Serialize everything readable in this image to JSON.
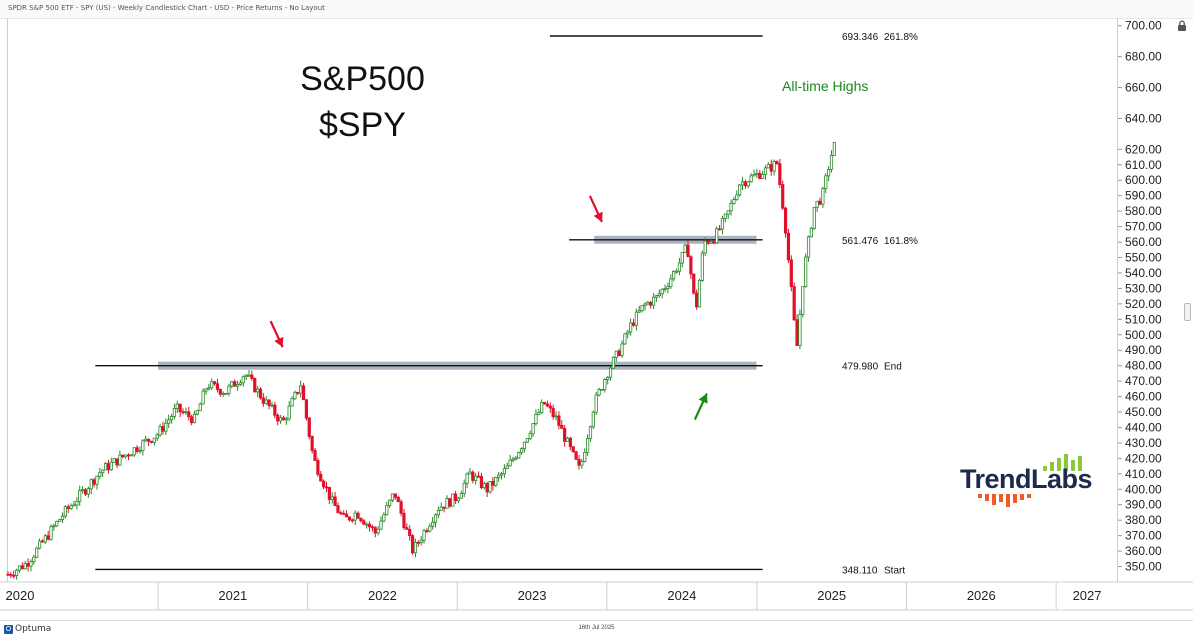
{
  "header": {
    "title": "SPDR S&P 500 ETF - SPY (US) - Weekly Candlestick Chart - USD - Price Returns - No Layout"
  },
  "annotations": {
    "title_line1": "S&P500",
    "title_line2": "$SPY",
    "ath_label": "All-time Highs",
    "ath_color": "#1a8a1a"
  },
  "footer": {
    "brand": "Optuma",
    "date": "16th Jul 2025"
  },
  "logo": {
    "text": "TrendLabs",
    "icon": "trendlabs-bars-logo"
  },
  "chart_data": {
    "type": "candlestick",
    "ylim": [
      340,
      705
    ],
    "yticks": [
      350,
      360,
      370,
      380,
      390,
      400,
      410,
      420,
      430,
      440,
      450,
      460,
      470,
      480,
      490,
      500,
      510,
      520,
      530,
      540,
      550,
      560,
      570,
      580,
      590,
      600,
      610,
      620,
      640,
      660,
      680,
      700
    ],
    "x_years": [
      "2020",
      "2021",
      "2022",
      "2023",
      "2024",
      "2025",
      "2026",
      "2027"
    ],
    "x_year_start_index": 2020,
    "xlim": [
      "2020-01-01",
      "2027-06-01"
    ],
    "up_color": "#2a8a2a",
    "down_color": "#e0102a",
    "levels": [
      {
        "value": 693.346,
        "label": "693.346",
        "tag": "261.8%",
        "from": "2023-08-15",
        "to": "2025-01-15"
      },
      {
        "value": 561.476,
        "label": "561.476",
        "tag": "161.8%",
        "from": "2023-10-01",
        "to": "2025-01-15"
      },
      {
        "value": 479.98,
        "label": "479.980",
        "tag": "End",
        "from": "2020-08-01",
        "to": "2025-01-15"
      },
      {
        "value": 348.11,
        "label": "348.110",
        "tag": "Start",
        "from": "2020-08-01",
        "to": "2025-01-15"
      }
    ],
    "zones": [
      {
        "value": 479.98,
        "from": "2021-01-01",
        "to": "2024-12-31",
        "color": "#8f9aa8"
      },
      {
        "value": 561.48,
        "from": "2023-12-01",
        "to": "2024-12-31",
        "color": "#8f9aa8"
      }
    ],
    "arrows": [
      {
        "date": "2021-11-01",
        "value": 492,
        "dir": "down",
        "color": "#e0102a"
      },
      {
        "date": "2023-12-20",
        "value": 573,
        "dir": "down",
        "color": "#e0102a"
      },
      {
        "date": "2024-09-01",
        "value": 462,
        "dir": "up",
        "color": "#1a8a1a"
      }
    ],
    "path": [
      [
        "2020-01-01",
        345
      ],
      [
        "2020-02-15",
        352
      ],
      [
        "2020-04-01",
        368
      ],
      [
        "2020-05-15",
        384
      ],
      [
        "2020-07-01",
        398
      ],
      [
        "2020-08-15",
        412
      ],
      [
        "2020-10-01",
        420
      ],
      [
        "2020-11-15",
        428
      ],
      [
        "2021-01-01",
        436
      ],
      [
        "2021-02-15",
        452
      ],
      [
        "2021-04-01",
        445
      ],
      [
        "2021-05-01",
        468
      ],
      [
        "2021-06-15",
        463
      ],
      [
        "2021-08-01",
        475
      ],
      [
        "2021-09-15",
        458
      ],
      [
        "2021-11-01",
        443
      ],
      [
        "2021-12-15",
        468
      ],
      [
        "2022-01-15",
        420
      ],
      [
        "2022-03-01",
        392
      ],
      [
        "2022-04-01",
        380
      ],
      [
        "2022-05-01",
        385
      ],
      [
        "2022-06-15",
        372
      ],
      [
        "2022-08-01",
        398
      ],
      [
        "2022-09-15",
        360
      ],
      [
        "2022-10-15",
        374
      ],
      [
        "2022-11-15",
        388
      ],
      [
        "2022-12-31",
        395
      ],
      [
        "2023-02-01",
        410
      ],
      [
        "2023-03-15",
        400
      ],
      [
        "2023-05-01",
        413
      ],
      [
        "2023-06-15",
        432
      ],
      [
        "2023-07-31",
        456
      ],
      [
        "2023-09-01",
        445
      ],
      [
        "2023-10-27",
        412
      ],
      [
        "2023-12-01",
        455
      ],
      [
        "2024-01-01",
        475
      ],
      [
        "2024-02-01",
        490
      ],
      [
        "2024-03-01",
        507
      ],
      [
        "2024-04-01",
        519
      ],
      [
        "2024-05-01",
        524
      ],
      [
        "2024-06-01",
        535
      ],
      [
        "2024-07-01",
        549
      ],
      [
        "2024-07-15",
        558
      ],
      [
        "2024-08-05",
        515
      ],
      [
        "2024-08-25",
        560
      ],
      [
        "2024-09-20",
        563
      ],
      [
        "2024-10-20",
        577
      ],
      [
        "2024-11-20",
        598
      ],
      [
        "2024-12-20",
        602
      ],
      [
        "2025-01-20",
        606
      ],
      [
        "2025-02-19",
        611
      ],
      [
        "2025-03-10",
        575
      ],
      [
        "2025-04-08",
        490
      ],
      [
        "2025-04-25",
        540
      ],
      [
        "2025-05-20",
        582
      ],
      [
        "2025-06-10",
        590
      ],
      [
        "2025-06-30",
        615
      ],
      [
        "2025-07-14",
        626
      ]
    ]
  }
}
